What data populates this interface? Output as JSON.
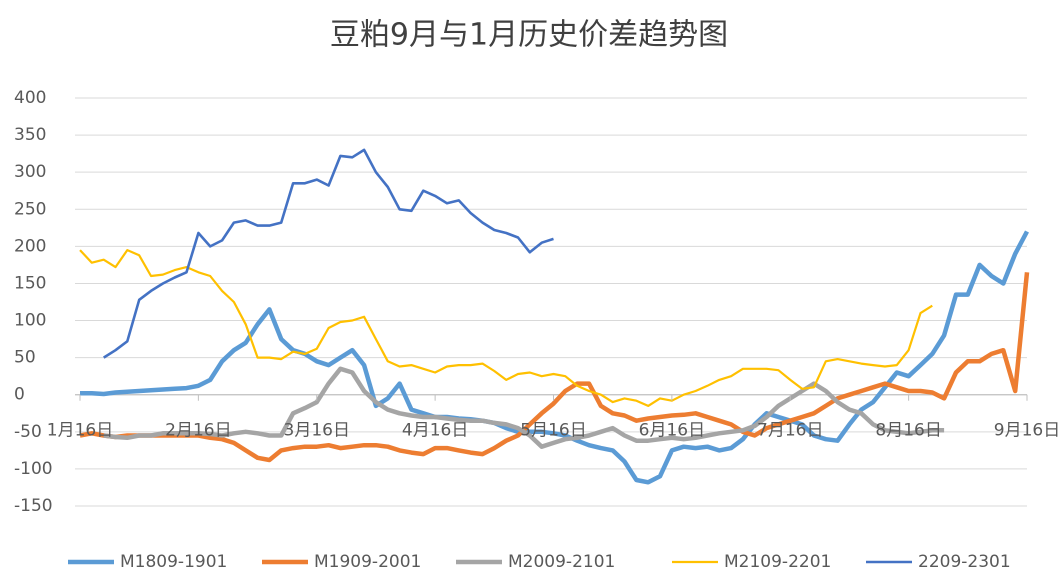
{
  "chart_data": {
    "type": "line",
    "title": "豆粕9月与1月历史价差趋势图",
    "categories": [
      "1月16日",
      null,
      null,
      null,
      null,
      null,
      null,
      null,
      null,
      null,
      "2月16日",
      null,
      null,
      null,
      null,
      null,
      null,
      null,
      null,
      null,
      "3月16日",
      null,
      null,
      null,
      null,
      null,
      null,
      null,
      null,
      null,
      "4月16日",
      null,
      null,
      null,
      null,
      null,
      null,
      null,
      null,
      null,
      "5月16日",
      null,
      null,
      null,
      null,
      null,
      null,
      null,
      null,
      null,
      "6月16日",
      null,
      null,
      null,
      null,
      null,
      null,
      null,
      null,
      null,
      "7月16日",
      null,
      null,
      null,
      null,
      null,
      null,
      null,
      null,
      null,
      "8月16日",
      null,
      null,
      null,
      null,
      null,
      null,
      null,
      null,
      null,
      "9月16日"
    ],
    "ylim": [
      -150,
      400
    ],
    "yticks": [
      -150,
      -100,
      -50,
      0,
      50,
      100,
      150,
      200,
      250,
      300,
      350,
      400
    ],
    "grid": true,
    "legend": "bottom",
    "series": [
      {
        "name": "M1809-1901",
        "color": "#5b9bd5",
        "values": [
          2,
          2,
          1,
          3,
          4,
          5,
          6,
          7,
          8,
          9,
          12,
          20,
          45,
          60,
          70,
          95,
          115,
          75,
          60,
          55,
          45,
          40,
          50,
          60,
          40,
          -15,
          -5,
          15,
          -20,
          -25,
          -30,
          -30,
          -32,
          -33,
          -35,
          -38,
          -45,
          -50,
          -50,
          -50,
          -52,
          -55,
          -62,
          -68,
          -72,
          -75,
          -90,
          -115,
          -118,
          -110,
          -75,
          -70,
          -72,
          -70,
          -75,
          -72,
          -60,
          -40,
          -25,
          -30,
          -35,
          -40,
          -55,
          -60,
          -62,
          -40,
          -20,
          -10,
          10,
          30,
          25,
          40,
          55,
          80,
          135,
          135,
          175,
          160,
          150,
          190,
          220
        ]
      },
      {
        "name": "M1909-2001",
        "color": "#ed7d31",
        "values": [
          -55,
          -52,
          -55,
          -57,
          -55,
          -55,
          -55,
          -55,
          -55,
          -55,
          -55,
          -58,
          -60,
          -65,
          -75,
          -85,
          -88,
          -75,
          -72,
          -70,
          -70,
          -68,
          -72,
          -70,
          -68,
          -68,
          -70,
          -75,
          -78,
          -80,
          -72,
          -72,
          -75,
          -78,
          -80,
          -72,
          -62,
          -55,
          -40,
          -25,
          -12,
          5,
          15,
          15,
          -15,
          -25,
          -28,
          -35,
          -32,
          -30,
          -28,
          -27,
          -25,
          -30,
          -35,
          -40,
          -50,
          -55,
          -45,
          -40,
          -35,
          -30,
          -25,
          -15,
          -5,
          0,
          5,
          10,
          15,
          10,
          5,
          5,
          3,
          -5,
          30,
          45,
          45,
          55,
          60,
          5,
          165
        ]
      },
      {
        "name": "M2009-2101",
        "color": "#a5a5a5",
        "values": [
          null,
          null,
          -55,
          -57,
          -58,
          -55,
          -55,
          -52,
          -52,
          -52,
          -52,
          -53,
          -55,
          -52,
          -50,
          -52,
          -55,
          -55,
          -25,
          -18,
          -10,
          15,
          35,
          30,
          5,
          -10,
          -20,
          -25,
          -28,
          -30,
          -30,
          -32,
          -34,
          -35,
          -35,
          -38,
          -40,
          -45,
          -55,
          -70,
          -65,
          -60,
          -58,
          -55,
          -50,
          -45,
          -55,
          -62,
          -62,
          -60,
          -58,
          -60,
          -58,
          -55,
          -52,
          -50,
          -48,
          -42,
          -30,
          -15,
          -5,
          5,
          15,
          5,
          -10,
          -20,
          -25,
          -40,
          -48,
          -50,
          -52,
          -50,
          -48,
          -48,
          null,
          null,
          null,
          null,
          null,
          null,
          null
        ]
      },
      {
        "name": "M2109-2201",
        "color": "#ffc000",
        "values": [
          195,
          178,
          182,
          172,
          195,
          188,
          160,
          162,
          168,
          172,
          165,
          160,
          140,
          125,
          95,
          50,
          50,
          48,
          58,
          55,
          62,
          90,
          98,
          100,
          105,
          75,
          45,
          38,
          40,
          35,
          30,
          38,
          40,
          40,
          42,
          32,
          20,
          28,
          30,
          25,
          28,
          25,
          12,
          5,
          0,
          -10,
          -5,
          -8,
          -15,
          -5,
          -8,
          0,
          5,
          12,
          20,
          25,
          35,
          35,
          35,
          33,
          20,
          8,
          10,
          45,
          48,
          45,
          42,
          40,
          38,
          40,
          60,
          110,
          120,
          null,
          null,
          null,
          null,
          null,
          null,
          null,
          null
        ]
      },
      {
        "name": "2209-2301",
        "color": "#4472c4",
        "values": [
          null,
          null,
          50,
          60,
          72,
          128,
          140,
          150,
          158,
          165,
          218,
          200,
          208,
          232,
          235,
          228,
          228,
          232,
          285,
          285,
          290,
          282,
          322,
          320,
          330,
          300,
          280,
          250,
          248,
          275,
          268,
          258,
          262,
          245,
          232,
          222,
          218,
          212,
          192,
          205,
          210,
          null,
          null,
          null,
          null,
          null,
          null,
          null,
          null,
          null,
          null,
          null,
          null,
          null,
          null,
          null,
          null,
          null,
          null,
          null,
          null,
          null,
          null,
          null,
          null,
          null,
          null,
          null,
          null,
          null,
          null,
          null,
          null,
          null,
          null,
          null,
          null,
          null,
          null,
          null,
          null
        ]
      }
    ]
  }
}
